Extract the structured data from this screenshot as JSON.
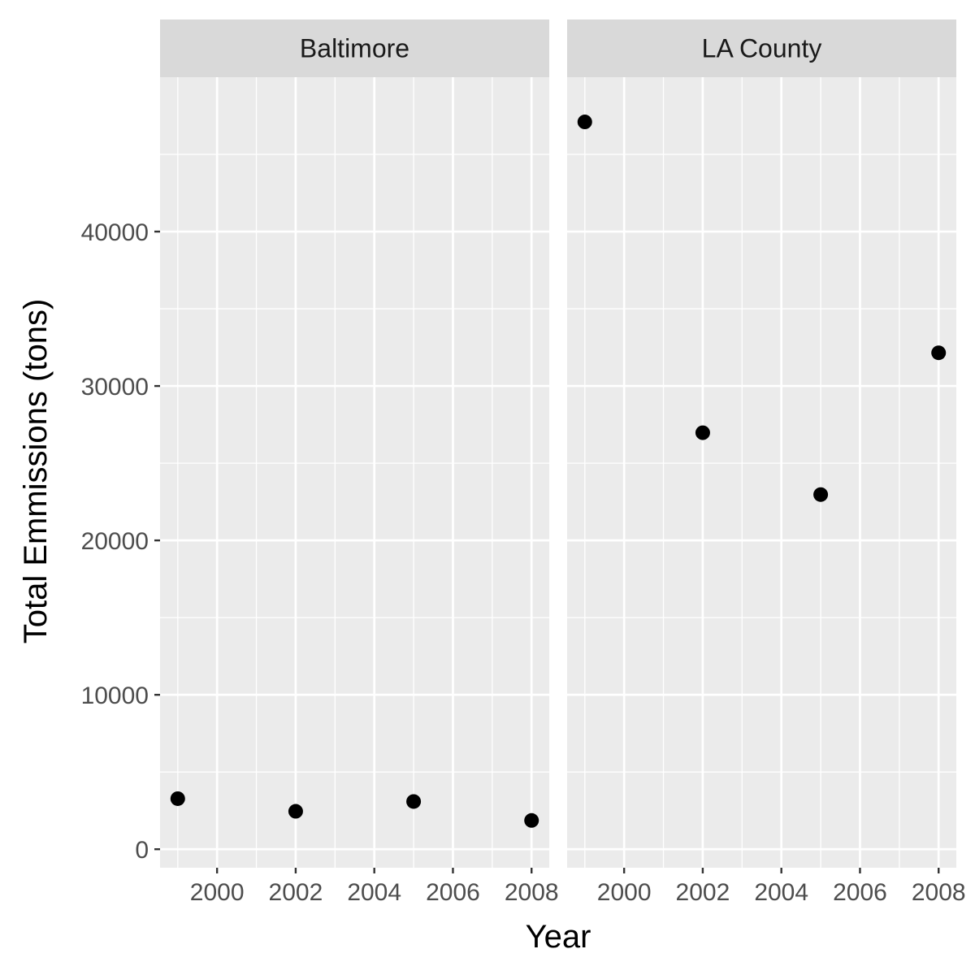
{
  "chart_data": {
    "type": "scatter",
    "xlabel": "Year",
    "ylabel": "Total Emmissions (tons)",
    "xlim": [
      1998.55,
      2008.45
    ],
    "ylim": [
      -1200,
      50000
    ],
    "x_ticks": [
      2000,
      2002,
      2004,
      2006,
      2008
    ],
    "x_tick_labels": [
      "2000",
      "2002",
      "2004",
      "2006",
      "2008"
    ],
    "y_ticks": [
      0,
      10000,
      20000,
      30000,
      40000
    ],
    "y_tick_labels": [
      "0",
      "10000",
      "20000",
      "30000",
      "40000"
    ],
    "grid": true,
    "legend": "none",
    "point_color": "#000000",
    "panel_background": "#ebebeb",
    "strip_background": "#d9d9d9",
    "panels": [
      {
        "name": "Baltimore",
        "points": [
          {
            "x": 1999,
            "y": 3274
          },
          {
            "x": 2002,
            "y": 2454
          },
          {
            "x": 2005,
            "y": 3091
          },
          {
            "x": 2008,
            "y": 1862
          }
        ]
      },
      {
        "name": "LA County",
        "points": [
          {
            "x": 1999,
            "y": 47103
          },
          {
            "x": 2002,
            "y": 26975
          },
          {
            "x": 2005,
            "y": 22967
          },
          {
            "x": 2008,
            "y": 32151
          }
        ]
      }
    ]
  }
}
